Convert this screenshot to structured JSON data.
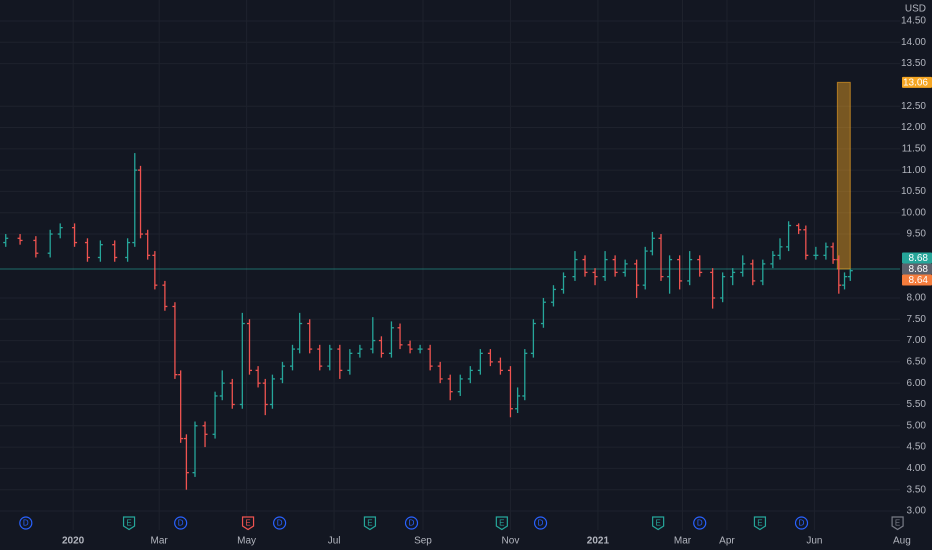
{
  "chart_data": {
    "type": "ohlc",
    "currency": "USD",
    "up_color": "#26a69a",
    "down_color": "#ef5350",
    "grid": true,
    "x": [
      -47,
      -37,
      -26,
      -16,
      -9,
      1,
      10,
      19,
      29,
      38,
      43,
      47,
      52,
      57,
      64,
      71,
      75,
      79,
      85,
      92,
      99,
      104,
      111,
      118,
      123,
      129,
      134,
      139,
      146,
      153,
      158,
      165,
      172,
      179,
      186,
      193,
      200,
      209,
      215,
      222,
      228,
      235,
      242,
      249,
      256,
      263,
      270,
      277,
      284,
      291,
      298,
      305,
      310,
      315,
      321,
      328,
      335,
      342,
      350,
      357,
      364,
      371,
      378,
      385,
      393,
      399,
      404,
      410,
      416,
      423,
      430,
      437,
      446,
      453,
      460,
      467,
      474,
      481,
      488,
      493,
      499,
      506,
      511,
      518,
      525,
      530,
      534,
      538,
      542
    ],
    "open": [
      9.3,
      9.4,
      9.35,
      9.05,
      9.5,
      9.65,
      9.3,
      8.95,
      9.25,
      8.95,
      9.3,
      11.0,
      9.5,
      9.0,
      8.3,
      7.8,
      6.2,
      4.7,
      3.9,
      5.0,
      4.8,
      5.7,
      6.0,
      5.5,
      7.4,
      6.3,
      6.0,
      5.5,
      6.1,
      6.4,
      6.8,
      7.4,
      6.8,
      6.4,
      6.8,
      6.3,
      6.7,
      6.8,
      7.0,
      6.7,
      7.3,
      6.9,
      6.8,
      6.8,
      6.4,
      6.1,
      5.8,
      6.1,
      6.3,
      6.7,
      6.5,
      6.3,
      5.4,
      5.7,
      6.7,
      7.4,
      7.9,
      8.2,
      8.5,
      8.9,
      8.6,
      8.5,
      8.9,
      8.6,
      8.8,
      8.3,
      9.1,
      9.4,
      8.5,
      8.9,
      8.4,
      8.9,
      8.6,
      8.0,
      8.5,
      8.6,
      8.8,
      8.4,
      8.8,
      9.0,
      9.2,
      9.7,
      9.6,
      9.0,
      9.0,
      9.2,
      8.9,
      8.3,
      8.5
    ],
    "high": [
      9.5,
      9.5,
      9.45,
      9.6,
      9.75,
      9.75,
      9.4,
      9.35,
      9.35,
      9.4,
      11.4,
      11.1,
      9.6,
      9.1,
      8.4,
      7.9,
      6.3,
      4.8,
      5.1,
      5.1,
      5.8,
      6.3,
      6.1,
      7.65,
      7.5,
      6.4,
      6.1,
      6.2,
      6.5,
      6.9,
      7.65,
      7.5,
      6.9,
      6.9,
      6.9,
      6.8,
      6.9,
      7.55,
      7.1,
      7.45,
      7.4,
      7.0,
      6.9,
      6.9,
      6.5,
      6.2,
      6.2,
      6.4,
      6.8,
      6.8,
      6.6,
      6.4,
      5.9,
      6.8,
      7.5,
      8.0,
      8.3,
      8.6,
      9.1,
      9.0,
      8.7,
      9.1,
      9.0,
      8.9,
      8.9,
      9.2,
      9.55,
      9.5,
      9.0,
      9.0,
      9.1,
      9.0,
      8.7,
      8.6,
      8.7,
      9.0,
      8.9,
      8.9,
      9.1,
      9.4,
      9.8,
      9.75,
      9.7,
      9.2,
      9.3,
      9.3,
      9.0,
      8.6,
      8.68
    ],
    "low": [
      9.2,
      9.25,
      8.95,
      8.95,
      9.4,
      9.2,
      8.85,
      8.85,
      8.85,
      8.85,
      9.2,
      9.4,
      8.9,
      8.2,
      7.7,
      6.1,
      4.6,
      3.5,
      3.8,
      4.5,
      4.7,
      5.6,
      5.4,
      5.4,
      6.2,
      5.9,
      5.25,
      5.4,
      6.0,
      6.3,
      6.7,
      6.7,
      6.3,
      6.3,
      6.1,
      6.2,
      6.6,
      6.7,
      6.6,
      6.6,
      6.8,
      6.7,
      6.7,
      6.3,
      6.0,
      5.6,
      5.7,
      6.0,
      6.2,
      6.4,
      6.2,
      5.2,
      5.3,
      5.6,
      6.6,
      7.3,
      7.8,
      8.1,
      8.4,
      8.5,
      8.3,
      8.4,
      8.5,
      8.5,
      8.0,
      8.2,
      9.0,
      8.4,
      8.1,
      8.2,
      8.3,
      8.5,
      7.75,
      7.9,
      8.3,
      8.5,
      8.3,
      8.3,
      8.7,
      8.9,
      9.1,
      9.5,
      8.9,
      8.9,
      8.9,
      8.8,
      8.1,
      8.2,
      8.4
    ],
    "close": [
      9.4,
      9.35,
      9.05,
      9.5,
      9.65,
      9.3,
      8.95,
      9.25,
      8.95,
      9.3,
      11.0,
      9.5,
      9.0,
      8.3,
      7.8,
      6.2,
      4.7,
      3.9,
      5.0,
      4.8,
      5.7,
      6.0,
      5.5,
      7.4,
      6.3,
      6.0,
      5.5,
      6.1,
      6.4,
      6.8,
      7.4,
      6.8,
      6.4,
      6.8,
      6.3,
      6.7,
      6.8,
      7.0,
      6.7,
      7.3,
      6.9,
      6.8,
      6.8,
      6.4,
      6.1,
      5.8,
      6.1,
      6.3,
      6.7,
      6.5,
      6.3,
      5.4,
      5.7,
      6.7,
      7.4,
      7.9,
      8.2,
      8.5,
      8.9,
      8.6,
      8.5,
      8.9,
      8.6,
      8.8,
      8.3,
      9.1,
      9.4,
      8.5,
      8.9,
      8.4,
      8.9,
      8.6,
      8.0,
      8.5,
      8.6,
      8.8,
      8.4,
      8.8,
      9.0,
      9.2,
      9.7,
      9.6,
      9.0,
      9.0,
      9.2,
      8.9,
      8.3,
      8.5,
      8.64
    ],
    "xlim": [
      -51,
      599
    ],
    "xticks": [
      {
        "value": 0,
        "label": "2020"
      },
      {
        "value": 60,
        "label": "Mar"
      },
      {
        "value": 121,
        "label": "May"
      },
      {
        "value": 182,
        "label": "Jul"
      },
      {
        "value": 244,
        "label": "Sep"
      },
      {
        "value": 305,
        "label": "Nov"
      },
      {
        "value": 366,
        "label": "2021"
      },
      {
        "value": 425,
        "label": "Mar"
      },
      {
        "value": 456,
        "label": "Apr"
      },
      {
        "value": 517,
        "label": "Jun"
      },
      {
        "value": 578,
        "label": "Aug"
      }
    ],
    "ylim": [
      3.0,
      14.5
    ],
    "yticks": [
      {
        "value": 3,
        "label": "3.00"
      },
      {
        "value": 3.5,
        "label": "3.50"
      },
      {
        "value": 4,
        "label": "4.00"
      },
      {
        "value": 4.5,
        "label": "4.50"
      },
      {
        "value": 5,
        "label": "5.00"
      },
      {
        "value": 5.5,
        "label": "5.50"
      },
      {
        "value": 6,
        "label": "6.00"
      },
      {
        "value": 6.5,
        "label": "6.50"
      },
      {
        "value": 7,
        "label": "7.00"
      },
      {
        "value": 7.5,
        "label": "7.50"
      },
      {
        "value": 8,
        "label": "8.00"
      },
      {
        "value": 9.5,
        "label": "9.50"
      },
      {
        "value": 10,
        "label": "10.00"
      },
      {
        "value": 10.5,
        "label": "10.50"
      },
      {
        "value": 11,
        "label": "11.00"
      },
      {
        "value": 11.5,
        "label": "11.50"
      },
      {
        "value": 12,
        "label": "12.00"
      },
      {
        "value": 12.5,
        "label": "12.50"
      },
      {
        "value": 13.5,
        "label": "13.50"
      },
      {
        "value": 14,
        "label": "14.00"
      },
      {
        "value": 14.5,
        "label": "14.50"
      }
    ],
    "last_price": 8.68,
    "price_labels": [
      {
        "value": 13.06,
        "label": "13.06",
        "color": "#f5a623"
      },
      {
        "value": 8.68,
        "label": "8.68",
        "color": "#26a69a"
      },
      {
        "value": 8.68,
        "label": "8.68",
        "color": "#5d606b"
      },
      {
        "value": 8.64,
        "label": "8.64",
        "color": "#f57c3c"
      }
    ],
    "highlight": {
      "x": [
        533,
        542
      ],
      "from": 8.68,
      "to": 13.06,
      "color": "#f5a623"
    },
    "events": [
      {
        "x": -33,
        "label": "D",
        "color": "#2962ff"
      },
      {
        "x": 39,
        "label": "E",
        "color": "#26a69a"
      },
      {
        "x": 75,
        "label": "D",
        "color": "#2962ff"
      },
      {
        "x": 122,
        "label": "E",
        "color": "#ef5350"
      },
      {
        "x": 144,
        "label": "D",
        "color": "#2962ff"
      },
      {
        "x": 207,
        "label": "E",
        "color": "#26a69a"
      },
      {
        "x": 236,
        "label": "D",
        "color": "#2962ff"
      },
      {
        "x": 299,
        "label": "E",
        "color": "#26a69a"
      },
      {
        "x": 326,
        "label": "D",
        "color": "#2962ff"
      },
      {
        "x": 408,
        "label": "E",
        "color": "#26a69a"
      },
      {
        "x": 437,
        "label": "D",
        "color": "#2962ff"
      },
      {
        "x": 479,
        "label": "E",
        "color": "#26a69a"
      },
      {
        "x": 508,
        "label": "D",
        "color": "#2962ff"
      },
      {
        "x": 575,
        "label": "E",
        "color": "#787b86"
      }
    ]
  }
}
